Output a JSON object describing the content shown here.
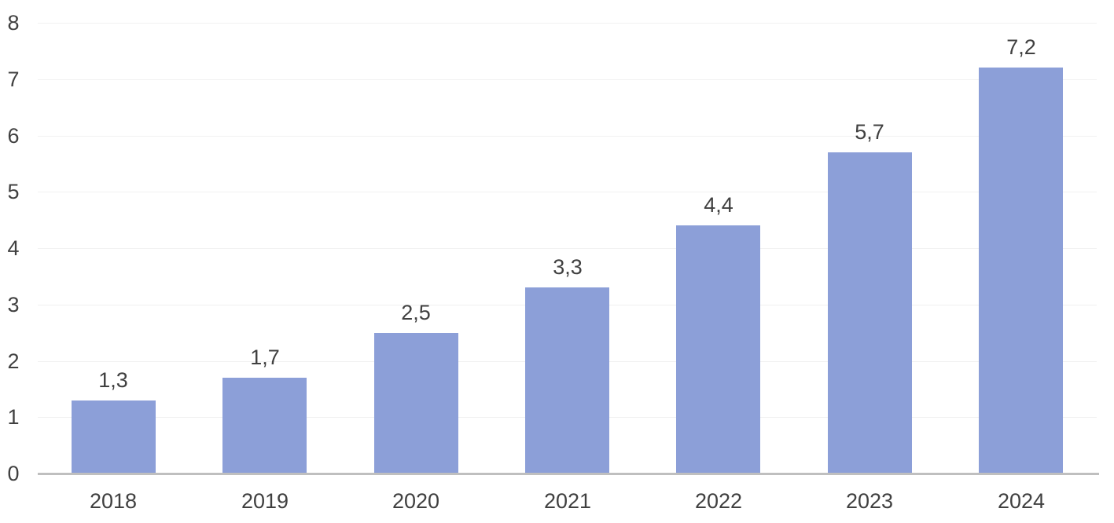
{
  "chart_data": {
    "type": "bar",
    "title": "",
    "subtitle": "",
    "xlabel": "",
    "ylabel": "",
    "categories": [
      "2018",
      "2019",
      "2020",
      "2021",
      "2022",
      "2023",
      "2024"
    ],
    "values": [
      1.3,
      1.7,
      2.5,
      3.3,
      4.4,
      5.7,
      7.2
    ],
    "value_labels": [
      "1,3",
      "1,7",
      "2,5",
      "3,3",
      "4,4",
      "5,7",
      "7,2"
    ],
    "y_ticks": [
      0,
      1,
      2,
      3,
      4,
      5,
      6,
      7,
      8
    ],
    "ylim": [
      0,
      8
    ],
    "grid": "horizontal",
    "legend_position": "none",
    "colors": {
      "bar_fill": "#8C9FD8",
      "axis_line": "#BFBFBF",
      "gridline": "#F1F1F1",
      "text": "#404040"
    }
  }
}
